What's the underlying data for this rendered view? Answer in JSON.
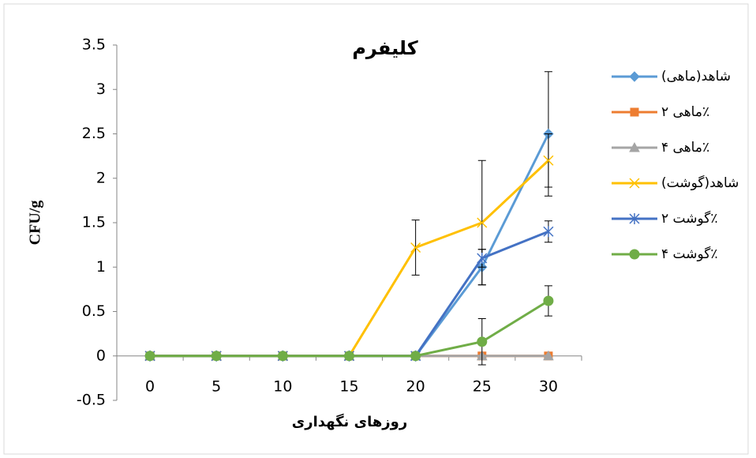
{
  "chart_data": {
    "type": "line",
    "title": "کلیفرم",
    "x_label": "روزهای نگهداری",
    "y_label": "CFU/g",
    "categories": [
      "0",
      "5",
      "10",
      "15",
      "20",
      "25",
      "30"
    ],
    "ylim": [
      -0.5,
      3.5
    ],
    "yticks": [
      -0.5,
      0,
      0.5,
      1,
      1.5,
      2,
      2.5,
      3,
      3.5
    ],
    "grid": false,
    "legend": "right",
    "series": [
      {
        "name": "شاهد(ماهی)",
        "color": "#5b9bd5",
        "marker": "diamond",
        "values": [
          0,
          0,
          0,
          0,
          0,
          1,
          2.5
        ],
        "errors": [
          null,
          null,
          null,
          null,
          null,
          0.2,
          0.7
        ]
      },
      {
        "name": "ماهی ۲٪",
        "color": "#ed7d31",
        "marker": "square",
        "values": [
          0,
          0,
          0,
          0,
          0,
          0,
          0
        ],
        "errors": [
          null,
          null,
          null,
          null,
          null,
          null,
          null
        ]
      },
      {
        "name": "ماهی ۴٪",
        "color": "#a5a5a5",
        "marker": "triangle",
        "values": [
          0,
          0,
          0,
          0,
          0,
          0,
          0
        ],
        "errors": [
          null,
          null,
          null,
          null,
          null,
          null,
          null
        ]
      },
      {
        "name": "شاهد(گوشت)",
        "color": "#ffc000",
        "marker": "x",
        "values": [
          0,
          0,
          0,
          0,
          1.22,
          1.5,
          2.2
        ],
        "errors": [
          null,
          null,
          null,
          null,
          0.31,
          0.7,
          0.3
        ]
      },
      {
        "name": "گوشت ۲٪",
        "color": "#4472c4",
        "marker": "star",
        "values": [
          0,
          0,
          0,
          0,
          0,
          1.1,
          1.4
        ],
        "errors": [
          null,
          null,
          null,
          null,
          null,
          0.1,
          0.12
        ]
      },
      {
        "name": "گوشت ۴٪",
        "color": "#70ad47",
        "marker": "circle",
        "values": [
          0,
          0,
          0,
          0,
          0,
          0.16,
          0.62
        ],
        "errors": [
          null,
          null,
          null,
          null,
          null,
          0.26,
          0.17
        ]
      }
    ]
  }
}
